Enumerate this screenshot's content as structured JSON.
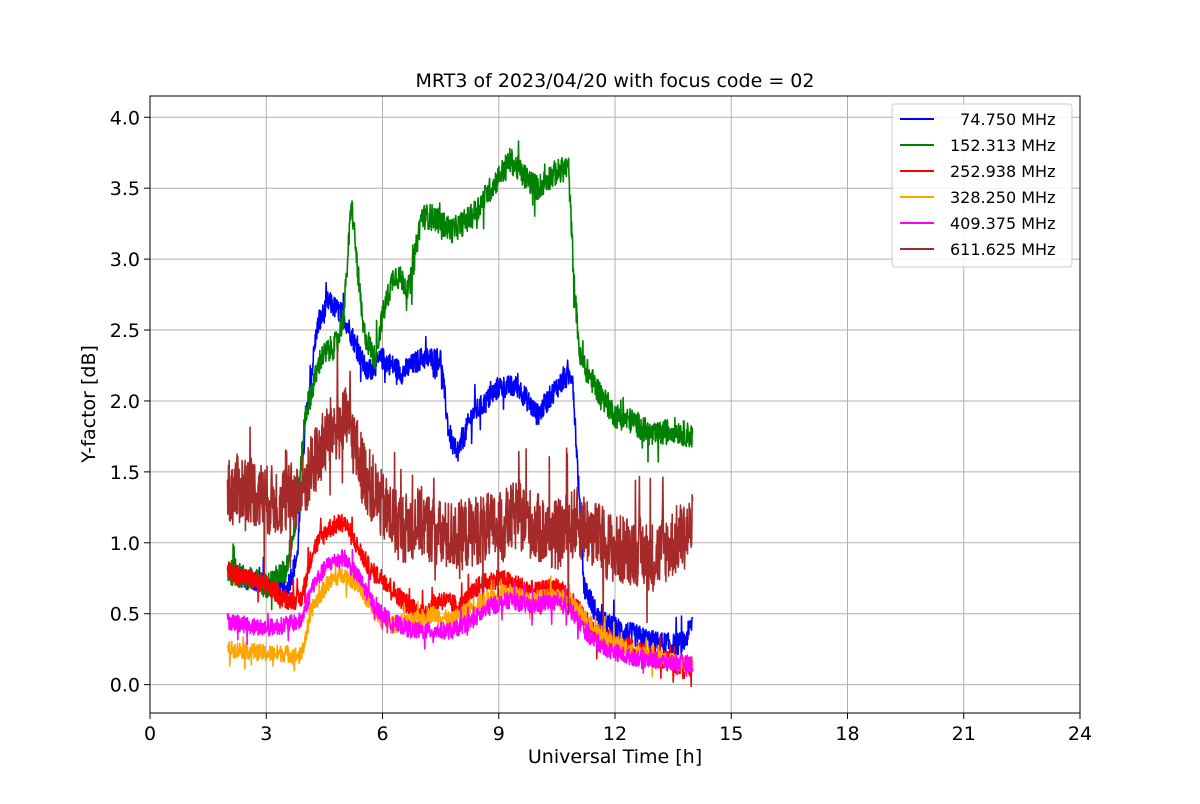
{
  "chart_data": {
    "type": "line",
    "title": "MRT3 of 2023/04/20 with focus code = 02",
    "xlabel": "Universal Time [h]",
    "ylabel": "Y-factor [dB]",
    "xlim": [
      0,
      24
    ],
    "ylim": [
      -0.2,
      4.15
    ],
    "xticks": [
      0,
      3,
      6,
      9,
      12,
      15,
      18,
      21,
      24
    ],
    "yticks": [
      0.0,
      0.5,
      1.0,
      1.5,
      2.0,
      2.5,
      3.0,
      3.5,
      4.0
    ],
    "xtick_labels": [
      "0",
      "3",
      "6",
      "9",
      "12",
      "15",
      "18",
      "21",
      "24"
    ],
    "ytick_labels": [
      "0.0",
      "0.5",
      "1.0",
      "1.5",
      "2.0",
      "2.5",
      "3.0",
      "3.5",
      "4.0"
    ],
    "grid": true,
    "legend_position": "top-right",
    "series": [
      {
        "name": "  74.750 MHz",
        "color": "#0000ff",
        "x": [
          2.0,
          2.5,
          3.0,
          3.5,
          3.8,
          4.0,
          4.3,
          4.6,
          5.0,
          5.3,
          5.6,
          6.0,
          6.5,
          7.0,
          7.5,
          7.7,
          7.9,
          8.3,
          8.7,
          9.0,
          9.5,
          10.0,
          10.5,
          10.9,
          11.2,
          11.6,
          12.0,
          12.5,
          13.0,
          13.5,
          13.8,
          14.0
        ],
        "values": [
          0.8,
          0.75,
          0.7,
          0.65,
          0.9,
          1.8,
          2.5,
          2.7,
          2.6,
          2.4,
          2.2,
          2.3,
          2.2,
          2.3,
          2.3,
          1.8,
          1.6,
          1.9,
          2.0,
          2.1,
          2.1,
          1.9,
          2.1,
          2.2,
          0.7,
          0.45,
          0.4,
          0.35,
          0.3,
          0.28,
          0.3,
          0.45
        ],
        "noise": 0.08
      },
      {
        "name": "152.313 MHz",
        "color": "#008000",
        "x": [
          2.0,
          2.5,
          3.0,
          3.5,
          3.8,
          4.0,
          4.4,
          4.8,
          5.0,
          5.2,
          5.5,
          5.8,
          6.0,
          6.3,
          6.7,
          7.0,
          7.3,
          7.8,
          8.3,
          8.8,
          9.3,
          9.6,
          10.0,
          10.4,
          10.8,
          10.95,
          11.1,
          11.5,
          12.0,
          12.5,
          13.0,
          13.5,
          14.0
        ],
        "values": [
          0.8,
          0.75,
          0.7,
          0.8,
          1.2,
          1.9,
          2.3,
          2.4,
          2.6,
          3.4,
          2.5,
          2.3,
          2.6,
          2.9,
          2.8,
          3.3,
          3.3,
          3.2,
          3.3,
          3.5,
          3.7,
          3.6,
          3.5,
          3.6,
          3.65,
          2.8,
          2.3,
          2.1,
          1.9,
          1.85,
          1.75,
          1.8,
          1.75
        ],
        "noise": 0.09
      },
      {
        "name": "252.938 MHz",
        "color": "#ff0000",
        "x": [
          2.0,
          2.5,
          3.0,
          3.5,
          3.9,
          4.2,
          4.6,
          5.0,
          5.3,
          5.7,
          6.0,
          6.5,
          7.0,
          7.5,
          8.0,
          8.5,
          9.0,
          9.5,
          10.0,
          10.5,
          11.0,
          11.5,
          12.0,
          12.5,
          13.0,
          13.5,
          14.0
        ],
        "values": [
          0.8,
          0.75,
          0.7,
          0.6,
          0.6,
          0.95,
          1.1,
          1.15,
          1.0,
          0.8,
          0.75,
          0.6,
          0.5,
          0.6,
          0.55,
          0.7,
          0.75,
          0.7,
          0.65,
          0.7,
          0.55,
          0.35,
          0.3,
          0.25,
          0.2,
          0.15,
          0.12
        ],
        "noise": 0.07
      },
      {
        "name": "328.250 MHz",
        "color": "#ffa500",
        "x": [
          2.0,
          2.5,
          3.0,
          3.5,
          3.9,
          4.2,
          4.6,
          5.0,
          5.4,
          5.8,
          6.2,
          6.8,
          7.3,
          7.8,
          8.3,
          8.8,
          9.3,
          9.8,
          10.3,
          10.8,
          11.3,
          11.8,
          12.3,
          12.8,
          13.3,
          13.8,
          14.0
        ],
        "values": [
          0.25,
          0.24,
          0.22,
          0.22,
          0.2,
          0.55,
          0.72,
          0.78,
          0.7,
          0.5,
          0.42,
          0.45,
          0.5,
          0.45,
          0.55,
          0.62,
          0.65,
          0.6,
          0.62,
          0.6,
          0.45,
          0.32,
          0.25,
          0.2,
          0.17,
          0.15,
          0.15
        ],
        "noise": 0.06
      },
      {
        "name": "409.375 MHz",
        "color": "#ff00ff",
        "x": [
          2.0,
          2.5,
          3.0,
          3.5,
          3.9,
          4.2,
          4.6,
          5.0,
          5.4,
          5.8,
          6.2,
          6.8,
          7.3,
          7.8,
          8.3,
          8.8,
          9.3,
          9.8,
          10.3,
          10.8,
          11.3,
          11.8,
          12.3,
          12.8,
          13.3,
          13.8,
          14.0
        ],
        "values": [
          0.45,
          0.42,
          0.4,
          0.42,
          0.45,
          0.7,
          0.85,
          0.9,
          0.75,
          0.55,
          0.45,
          0.38,
          0.38,
          0.38,
          0.45,
          0.55,
          0.6,
          0.55,
          0.58,
          0.55,
          0.35,
          0.25,
          0.2,
          0.18,
          0.16,
          0.15,
          0.15
        ],
        "noise": 0.06
      },
      {
        "name": "611.625 MHz",
        "color": "#a52a2a",
        "x": [
          2.0,
          2.5,
          3.0,
          3.5,
          3.9,
          4.3,
          4.7,
          5.1,
          5.5,
          6.0,
          6.5,
          7.0,
          7.5,
          8.0,
          8.5,
          9.0,
          9.5,
          10.0,
          10.5,
          11.0,
          11.5,
          12.0,
          12.5,
          13.0,
          13.5,
          14.0
        ],
        "values": [
          1.35,
          1.4,
          1.3,
          1.3,
          1.35,
          1.6,
          1.8,
          1.85,
          1.5,
          1.25,
          1.1,
          1.15,
          1.05,
          1.05,
          1.1,
          1.1,
          1.2,
          1.1,
          1.05,
          1.15,
          1.05,
          0.95,
          0.95,
          0.9,
          1.0,
          1.1
        ],
        "noise": 0.25
      }
    ]
  }
}
